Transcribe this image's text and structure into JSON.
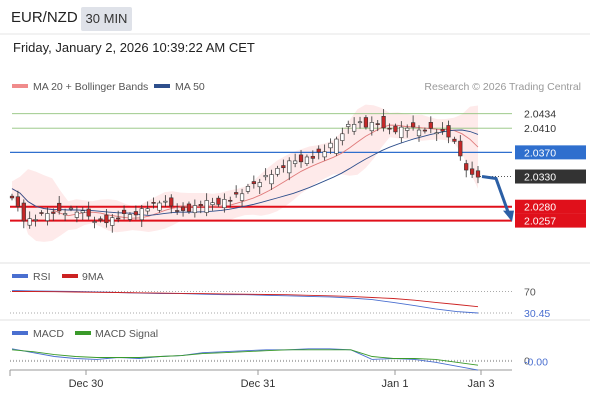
{
  "header": {
    "symbol": "EUR/NZD",
    "timeframe": "30 MIN",
    "datetime": "Friday, January 2, 2026 10:39:22 AM CET"
  },
  "legend": {
    "ma20_bb": "MA 20 + Bollinger Bands",
    "ma50": "MA 50",
    "credit": "Research © 2026 Trading Central",
    "rsi": "RSI",
    "rsi_ma": "9MA",
    "macd": "MACD",
    "macd_signal": "MACD Signal"
  },
  "colors": {
    "bb_fill": "#fde3e3",
    "ma20": "#e07b7b",
    "ma50": "#2e4f8c",
    "resistance": "#8fc27a",
    "pivot": "#2f6fce",
    "support": "#e0101b",
    "current": "#333333",
    "forecast": "#2c5fa5",
    "rsi": "#4a6fd0",
    "rsi_ma": "#cc2222",
    "macd": "#4a6fd0",
    "macd_signal": "#3a9a2a",
    "bull": "#ffffff",
    "bear": "#c62828"
  },
  "chart_data": [
    {
      "type": "candlestick",
      "name": "EUR/NZD 30 MIN",
      "x_ticks": [
        "Dec 30",
        "Dec 31",
        "Jan 1",
        "Jan 3"
      ],
      "ylim": [
        2.0205,
        2.0465
      ],
      "levels": [
        {
          "label": "2.0434",
          "value": 2.0434,
          "kind": "resistance"
        },
        {
          "label": "2.0410",
          "value": 2.041,
          "kind": "resistance"
        },
        {
          "label": "2.0370",
          "value": 2.037,
          "kind": "pivot"
        },
        {
          "label": "2.0330",
          "value": 2.033,
          "kind": "current"
        },
        {
          "label": "2.0280",
          "value": 2.028,
          "kind": "support"
        },
        {
          "label": "2.0257",
          "value": 2.0257,
          "kind": "support"
        }
      ],
      "forecast": [
        2.033,
        2.0257
      ],
      "close_path": [
        2.031,
        2.0295,
        2.026,
        2.0257,
        2.0262,
        2.0268,
        2.0274,
        2.027,
        2.0275,
        2.0272,
        2.0266,
        2.026,
        2.0255,
        2.0258,
        2.0262,
        2.0265,
        2.027,
        2.0276,
        2.0282,
        2.0288,
        2.0284,
        2.0279,
        2.0272,
        2.0276,
        2.0282,
        2.0286,
        2.0287,
        2.029,
        2.0294,
        2.03,
        2.0308,
        2.032,
        2.0328,
        2.0336,
        2.0342,
        2.035,
        2.0356,
        2.036,
        2.0362,
        2.0368,
        2.0375,
        2.039,
        2.0408,
        2.042,
        2.0418,
        2.0412,
        2.0418,
        2.0415,
        2.0406,
        2.0408,
        2.0412,
        2.0405,
        2.041,
        2.0408,
        2.0404,
        2.0398,
        2.038,
        2.035,
        2.0332
      ]
    },
    {
      "type": "line",
      "name": "RSI",
      "hlines": [
        {
          "label": "70",
          "value": 70
        },
        {
          "label": "30.45",
          "value": 30.45
        }
      ],
      "ylim": [
        25,
        80
      ],
      "series": [
        {
          "name": "RSI",
          "values": [
            72,
            71,
            70.5,
            70,
            69,
            68,
            67,
            66,
            66,
            65,
            64,
            64,
            63,
            62,
            61,
            60,
            58,
            55,
            50,
            44,
            38,
            33,
            30.45
          ]
        },
        {
          "name": "9MA",
          "values": [
            70,
            70,
            69.5,
            69,
            68.5,
            68,
            67.5,
            67,
            66.5,
            66,
            65.5,
            65,
            64.5,
            64,
            63,
            62,
            61,
            59,
            57,
            54,
            50,
            46,
            42
          ]
        }
      ]
    },
    {
      "type": "line",
      "name": "MACD",
      "hlines": [
        {
          "label": "0",
          "value": 0
        },
        {
          "label": "-0.00",
          "value": -0.0001
        }
      ],
      "ylim": [
        -0.0012,
        0.0018
      ],
      "series": [
        {
          "name": "MACD",
          "values": [
            0.0012,
            0.0008,
            0.0004,
            0.0002,
            0.0001,
            0.0003,
            0.0002,
            0.0004,
            0.0005,
            0.0008,
            0.0009,
            0.001,
            0.0011,
            0.0011,
            0.0012,
            0.0012,
            0.0011,
            0.0001,
            0.0002,
            0.0001,
            -0.0002,
            -0.0006,
            -0.001
          ]
        },
        {
          "name": "MACD Signal",
          "values": [
            0.0011,
            0.0009,
            0.0006,
            0.0004,
            0.0003,
            0.0003,
            0.0003,
            0.0004,
            0.0005,
            0.0007,
            0.0008,
            0.0009,
            0.001,
            0.0011,
            0.0011,
            0.0011,
            0.0011,
            0.0004,
            0.0002,
            0.0002,
            0.0001,
            -0.0002,
            -0.0005
          ]
        }
      ]
    }
  ]
}
